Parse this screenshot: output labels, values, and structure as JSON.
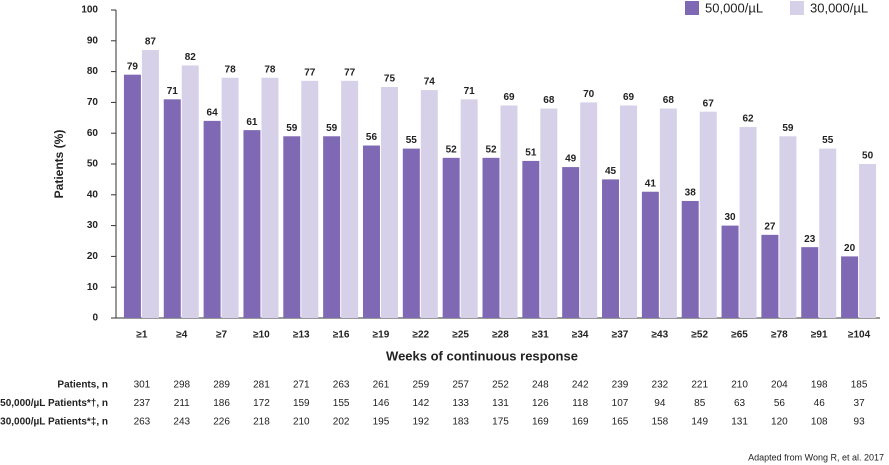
{
  "chart_data": {
    "type": "bar",
    "y_label": "Patients (%)",
    "x_label": "Weeks of continuous response",
    "categories": [
      "≥1",
      "≥4",
      "≥7",
      "≥10",
      "≥13",
      "≥16",
      "≥19",
      "≥22",
      "≥25",
      "≥28",
      "≥31",
      "≥34",
      "≥37",
      "≥43",
      "≥52",
      "≥65",
      "≥78",
      "≥91",
      "≥104"
    ],
    "series": [
      {
        "name": "50,000/µL",
        "color": "#7f69b5",
        "values": [
          79,
          71,
          64,
          61,
          59,
          59,
          56,
          55,
          52,
          52,
          51,
          49,
          45,
          41,
          38,
          30,
          27,
          23,
          20
        ]
      },
      {
        "name": "30,000/µL",
        "color": "#d6d1e9",
        "values": [
          87,
          82,
          78,
          78,
          77,
          77,
          75,
          74,
          71,
          69,
          68,
          70,
          69,
          68,
          67,
          62,
          59,
          55,
          50
        ]
      }
    ],
    "ylim": [
      0,
      100
    ],
    "yticks": [
      0,
      10,
      20,
      30,
      40,
      50,
      60,
      70,
      80,
      90,
      100
    ],
    "grid": false,
    "legend": "upper right"
  },
  "table": {
    "rows": [
      {
        "label": "Patients, n",
        "values": [
          301,
          298,
          289,
          281,
          271,
          263,
          261,
          259,
          257,
          252,
          248,
          242,
          239,
          232,
          221,
          210,
          204,
          198,
          185
        ]
      },
      {
        "label": "50,000/µL Patients*†, n",
        "values": [
          237,
          211,
          186,
          172,
          159,
          155,
          146,
          142,
          133,
          131,
          126,
          118,
          107,
          94,
          85,
          63,
          56,
          46,
          37
        ]
      },
      {
        "label": "30,000/µL Patients*‡, n",
        "values": [
          263,
          243,
          226,
          218,
          210,
          202,
          195,
          192,
          183,
          175,
          169,
          169,
          165,
          158,
          149,
          131,
          120,
          108,
          93
        ]
      }
    ]
  },
  "footer": "Adapted from Wong R, et al. 2017"
}
